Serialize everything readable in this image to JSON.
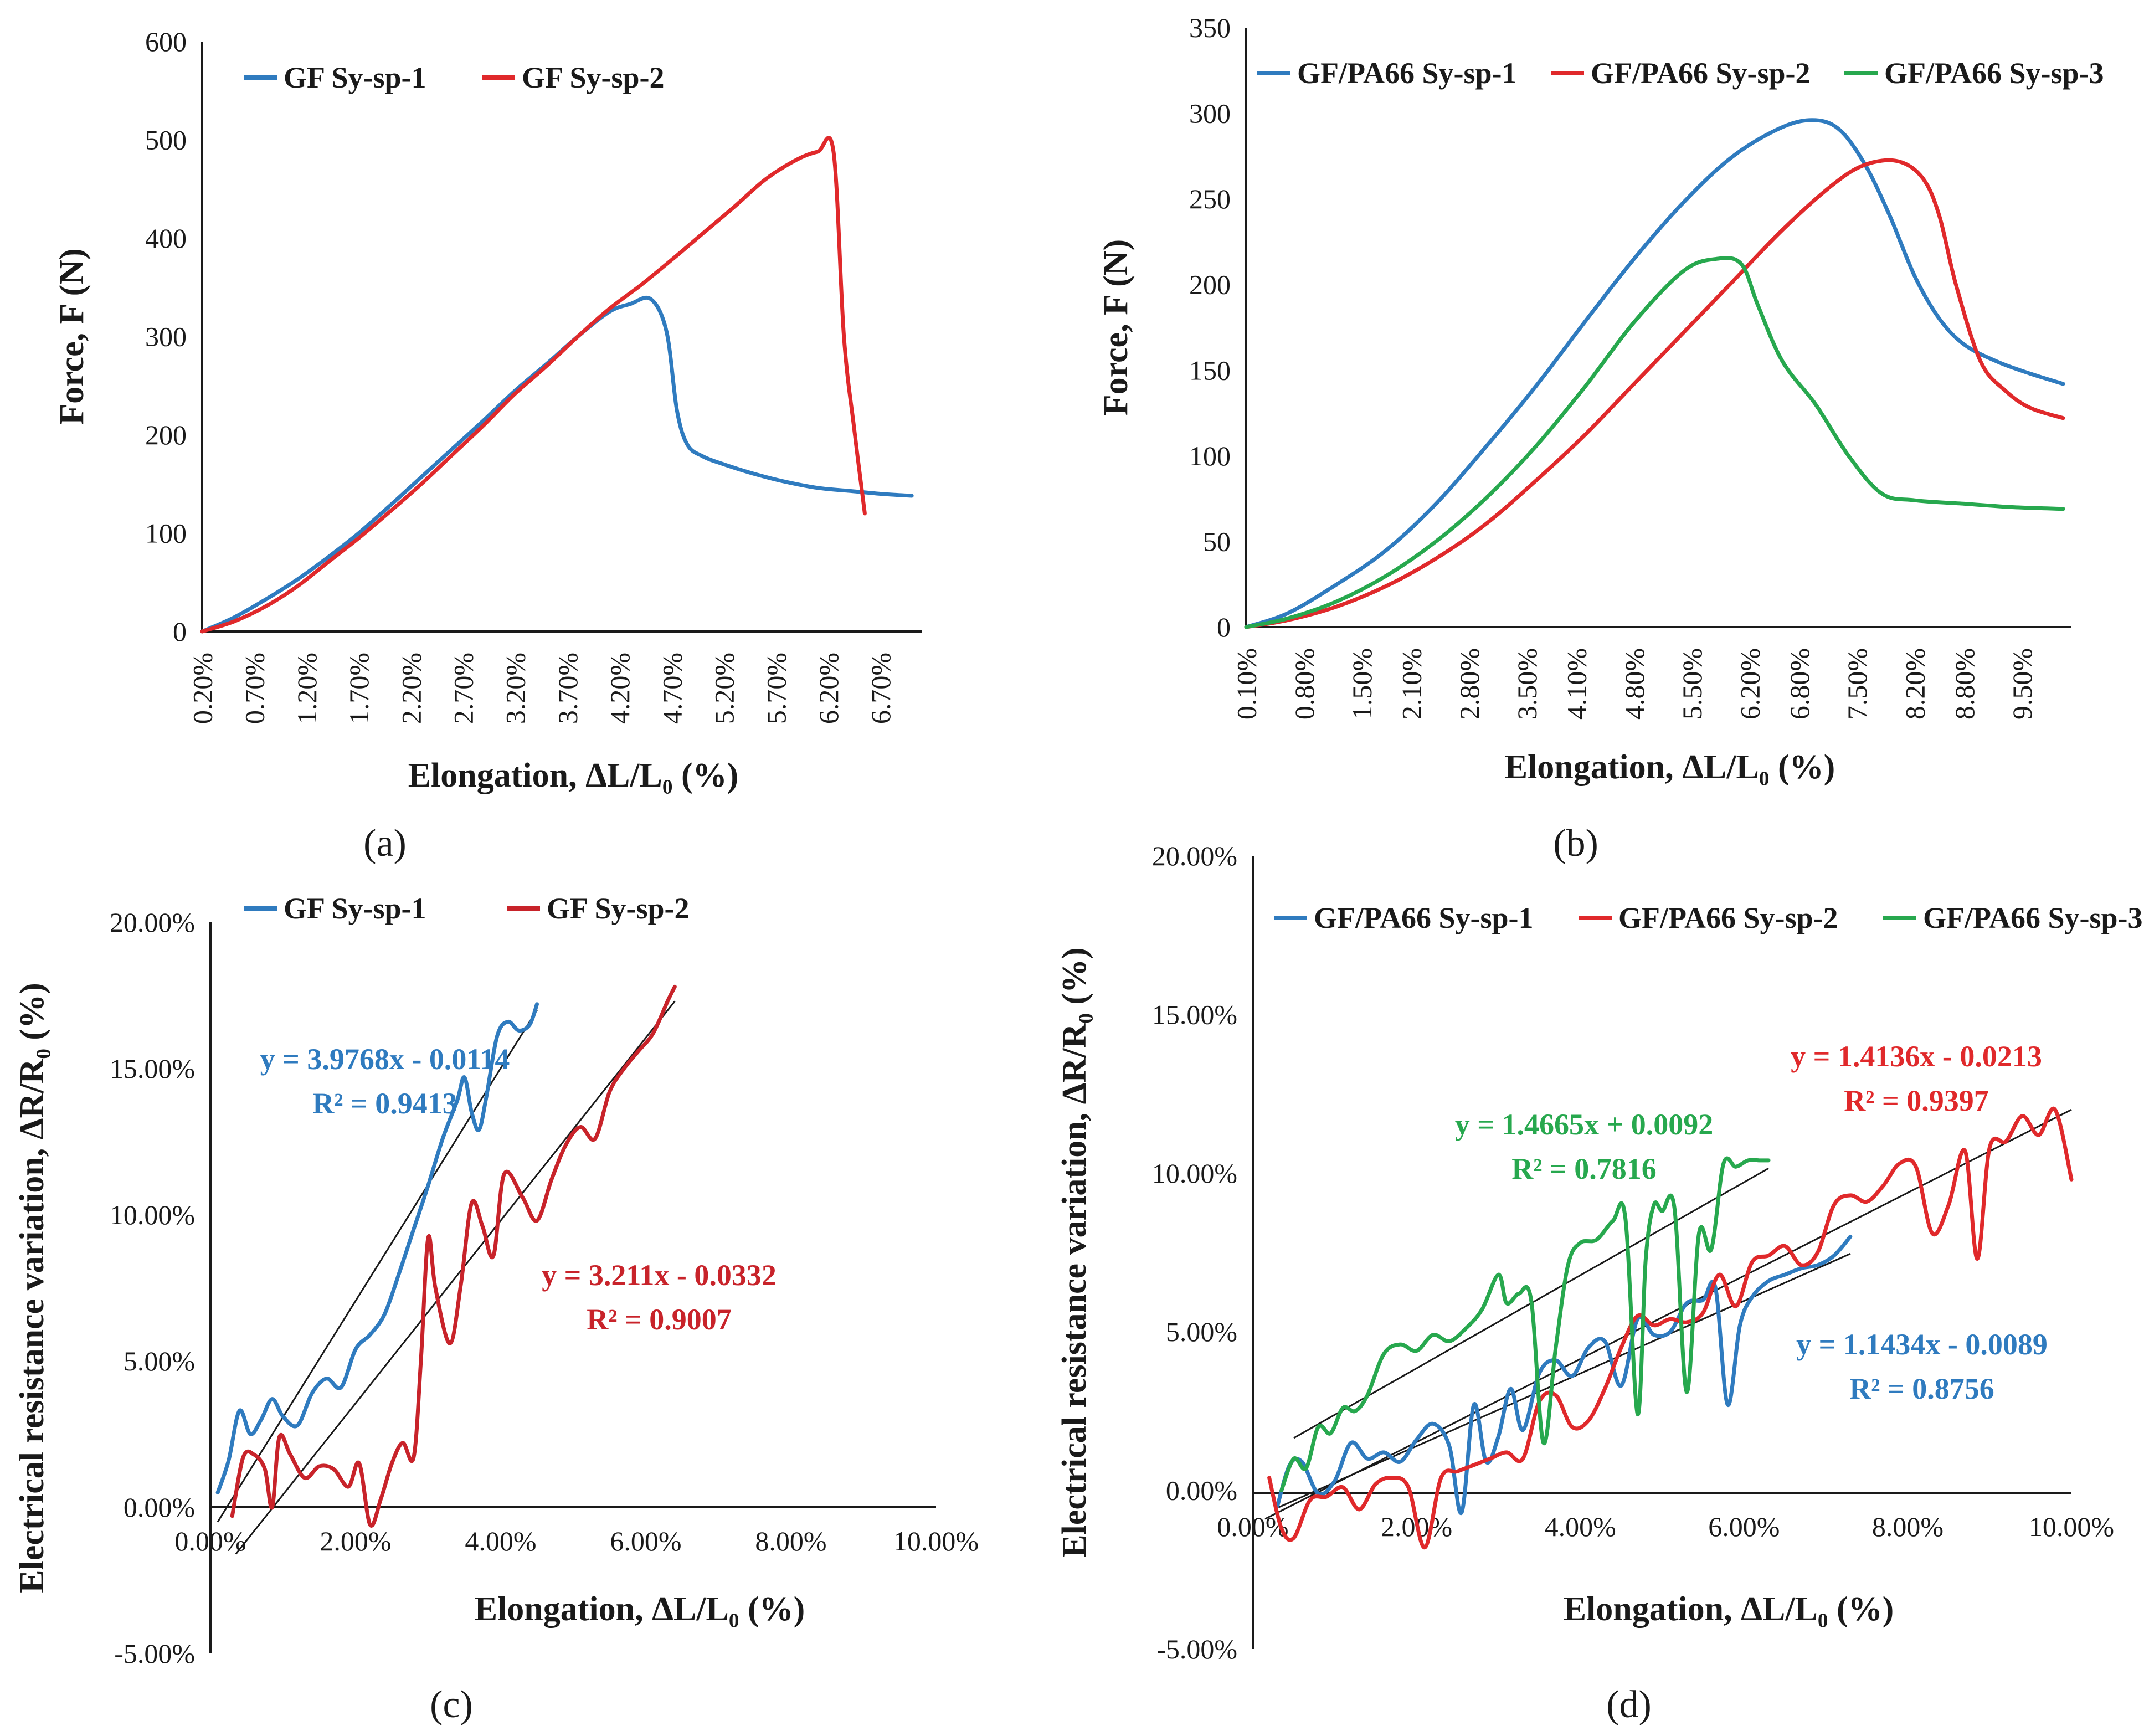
{
  "chart_data": [
    {
      "id": "a",
      "type": "line",
      "panel_label": "(a)",
      "xlabel_text": "Elongation, ΔL/L₀  (%)",
      "ylabel_text": "Force, F (N)",
      "ylim": [
        0,
        600
      ],
      "yticks": [
        "0",
        "100",
        "200",
        "300",
        "400",
        "500",
        "600"
      ],
      "xlim": [
        0.2,
        7.1
      ],
      "xticks": [
        "0.20%",
        "0.70%",
        "1.20%",
        "1.70%",
        "2.20%",
        "2.70%",
        "3.20%",
        "3.70%",
        "4.20%",
        "4.70%",
        "5.20%",
        "5.70%",
        "6.20%",
        "6.70%"
      ],
      "legend": [
        "GF Sy-sp-1",
        "GF Sy-sp-2"
      ],
      "series": [
        {
          "name": "GF Sy-sp-1",
          "color": "#2f7bbf",
          "x": [
            0.2,
            0.5,
            0.8,
            1.1,
            1.4,
            1.7,
            2.0,
            2.3,
            2.6,
            2.9,
            3.2,
            3.5,
            3.8,
            4.1,
            4.3,
            4.5,
            4.65,
            4.75,
            4.85,
            5.0,
            5.2,
            5.5,
            5.8,
            6.1,
            6.4,
            6.7,
            7.0
          ],
          "y": [
            0,
            14,
            32,
            52,
            75,
            100,
            128,
            157,
            186,
            215,
            245,
            272,
            300,
            325,
            333,
            338,
            305,
            225,
            190,
            178,
            170,
            160,
            152,
            146,
            143,
            140,
            138
          ]
        },
        {
          "name": "GF Sy-sp-2",
          "color": "#e0292b",
          "x": [
            0.2,
            0.5,
            0.8,
            1.1,
            1.4,
            1.7,
            2.0,
            2.3,
            2.6,
            2.9,
            3.2,
            3.5,
            3.8,
            4.1,
            4.4,
            4.7,
            5.0,
            5.3,
            5.6,
            5.9,
            6.1,
            6.25,
            6.35,
            6.45,
            6.55
          ],
          "y": [
            0,
            10,
            25,
            45,
            70,
            95,
            122,
            150,
            180,
            210,
            242,
            270,
            300,
            328,
            352,
            378,
            405,
            432,
            460,
            480,
            488,
            488,
            300,
            205,
            120
          ]
        }
      ]
    },
    {
      "id": "b",
      "type": "line",
      "panel_label": "(b)",
      "xlabel_text": "Elongation, ΔL/L₀ (%)",
      "ylabel_text": "Force, F (N)",
      "ylim": [
        0,
        350
      ],
      "yticks": [
        "0",
        "50",
        "100",
        "150",
        "200",
        "250",
        "300",
        "350"
      ],
      "xlim": [
        0.1,
        10.1
      ],
      "xticks": [
        "0.10%",
        "0.80%",
        "1.50%",
        "2.10%",
        "2.80%",
        "3.50%",
        "4.10%",
        "4.80%",
        "5.50%",
        "6.20%",
        "6.80%",
        "7.50%",
        "8.20%",
        "8.80%",
        "9.50%"
      ],
      "legend": [
        "GF/PA66 Sy-sp-1",
        "GF/PA66 Sy-sp-2",
        "GF/PA66 Sy-sp-3"
      ],
      "series": [
        {
          "name": "GF/PA66 Sy-sp-1",
          "color": "#2f7bbf",
          "x": [
            0.1,
            0.6,
            1.2,
            1.8,
            2.4,
            3.0,
            3.6,
            4.2,
            4.8,
            5.4,
            6.0,
            6.6,
            7.0,
            7.3,
            7.6,
            7.9,
            8.2,
            8.5,
            8.8,
            9.2,
            9.6,
            10.0
          ],
          "y": [
            0,
            8,
            25,
            45,
            72,
            105,
            140,
            178,
            215,
            248,
            275,
            292,
            296,
            290,
            270,
            240,
            205,
            180,
            165,
            155,
            148,
            142
          ]
        },
        {
          "name": "GF/PA66 Sy-sp-2",
          "color": "#e0292b",
          "x": [
            0.1,
            0.6,
            1.2,
            1.8,
            2.4,
            3.0,
            3.6,
            4.2,
            4.8,
            5.4,
            6.0,
            6.6,
            7.2,
            7.6,
            8.0,
            8.3,
            8.5,
            8.7,
            9.0,
            9.3,
            9.6,
            10.0
          ],
          "y": [
            0,
            4,
            12,
            24,
            40,
            60,
            85,
            112,
            142,
            172,
            202,
            232,
            258,
            270,
            272,
            262,
            240,
            200,
            155,
            138,
            128,
            122
          ]
        },
        {
          "name": "GF/PA66 Sy-sp-3",
          "color": "#27a84e",
          "x": [
            0.1,
            0.6,
            1.2,
            1.8,
            2.4,
            3.0,
            3.6,
            4.2,
            4.8,
            5.4,
            5.8,
            6.1,
            6.3,
            6.6,
            7.0,
            7.4,
            7.8,
            8.2,
            8.8,
            9.4,
            10.0
          ],
          "y": [
            0,
            5,
            15,
            30,
            50,
            75,
            105,
            140,
            178,
            208,
            215,
            212,
            188,
            155,
            130,
            100,
            78,
            74,
            72,
            70,
            69
          ]
        }
      ]
    },
    {
      "id": "c",
      "type": "line",
      "panel_label": "(c)",
      "xlabel_text": "Elongation, ΔL/L₀ (%)",
      "ylabel_text": "Electrical resistance variation, ΔR/R₀ (%)",
      "ylim": [
        -5,
        20
      ],
      "yticks": [
        "-5.00%",
        "0.00%",
        "5.00%",
        "10.00%",
        "15.00%",
        "20.00%"
      ],
      "xlim": [
        0,
        10
      ],
      "xticks": [
        "0.00%",
        "2.00%",
        "4.00%",
        "6.00%",
        "8.00%",
        "10.00%"
      ],
      "legend": [
        "GF Sy-sp-1",
        "GF Sy-sp-2"
      ],
      "series": [
        {
          "name": "GF Sy-sp-1",
          "color": "#2f7bbf",
          "x": [
            0.1,
            0.25,
            0.4,
            0.55,
            0.7,
            0.85,
            1.0,
            1.2,
            1.4,
            1.6,
            1.8,
            2.0,
            2.2,
            2.4,
            2.6,
            2.8,
            3.0,
            3.2,
            3.4,
            3.5,
            3.6,
            3.7,
            3.8,
            3.95,
            4.1,
            4.25,
            4.4,
            4.5
          ],
          "y": [
            0.5,
            1.6,
            3.3,
            2.5,
            3.0,
            3.7,
            3.1,
            2.8,
            3.9,
            4.4,
            4.1,
            5.4,
            5.9,
            6.6,
            8.0,
            9.5,
            11.0,
            12.6,
            13.9,
            14.7,
            13.5,
            12.9,
            14.0,
            16.1,
            16.6,
            16.3,
            16.5,
            17.2
          ]
        },
        {
          "name": "GF Sy-sp-2",
          "color": "#c8232a",
          "x": [
            0.3,
            0.45,
            0.6,
            0.75,
            0.85,
            0.95,
            1.1,
            1.3,
            1.5,
            1.7,
            1.9,
            2.05,
            2.2,
            2.35,
            2.5,
            2.65,
            2.8,
            2.9,
            3.0,
            3.1,
            3.3,
            3.45,
            3.6,
            3.75,
            3.9,
            4.05,
            4.3,
            4.5,
            4.7,
            4.9,
            5.1,
            5.3,
            5.5,
            5.7,
            5.9,
            6.1,
            6.3,
            6.4
          ],
          "y": [
            -0.3,
            1.7,
            1.8,
            1.3,
            0.0,
            2.4,
            1.8,
            1.0,
            1.4,
            1.3,
            0.7,
            1.5,
            -0.6,
            0.3,
            1.5,
            2.2,
            1.7,
            5.0,
            9.2,
            7.5,
            5.6,
            7.6,
            10.4,
            9.6,
            8.6,
            11.4,
            10.6,
            9.8,
            11.2,
            12.4,
            13.0,
            12.6,
            14.2,
            15.0,
            15.6,
            16.2,
            17.3,
            17.8
          ]
        }
      ],
      "trendlines": [
        {
          "color": "#1a1a1a",
          "x": [
            0.1,
            4.5
          ],
          "y": [
            -0.5,
            17.0
          ]
        },
        {
          "color": "#1a1a1a",
          "x": [
            0.35,
            6.4
          ],
          "y": [
            -1.6,
            17.3
          ]
        }
      ],
      "annotations": [
        {
          "color": "#2f7bbf",
          "line1": "y = 3.9768x - 0.0114",
          "line2": "R² = 0.9413"
        },
        {
          "color": "#c8232a",
          "line1": "y = 3.211x - 0.0332",
          "line2": "R² = 0.9007"
        }
      ]
    },
    {
      "id": "d",
      "type": "line",
      "panel_label": "(d)",
      "xlabel_text": "Elongation, ΔL/L₀ (%)",
      "ylabel_text": "Electrical resistance variation, ΔR/R₀ (%)",
      "ylim": [
        -5,
        20
      ],
      "yticks": [
        "-5.00%",
        "0.00%",
        "5.00%",
        "10.00%",
        "15.00%",
        "20.00%"
      ],
      "xlim": [
        0,
        10
      ],
      "xticks": [
        "0.00%",
        "2.00%",
        "4.00%",
        "6.00%",
        "8.00%",
        "10.00%"
      ],
      "legend": [
        "GF/PA66 Sy-sp-1",
        "GF/PA66 Sy-sp-2",
        "GF/PA66 Sy-sp-3"
      ],
      "series": [
        {
          "name": "GF/PA66 Sy-sp-1",
          "color": "#2f7bbf",
          "x": [
            0.3,
            0.45,
            0.6,
            0.8,
            1.0,
            1.2,
            1.4,
            1.6,
            1.8,
            2.0,
            2.2,
            2.4,
            2.55,
            2.7,
            2.85,
            3.0,
            3.15,
            3.3,
            3.5,
            3.7,
            3.9,
            4.1,
            4.3,
            4.5,
            4.7,
            4.9,
            5.1,
            5.3,
            5.5,
            5.65,
            5.8,
            5.95,
            6.1,
            6.3,
            6.5,
            6.7,
            6.9,
            7.1,
            7.3
          ],
          "y": [
            -0.5,
            0.8,
            0.9,
            -0.1,
            0.3,
            1.5,
            1.0,
            1.2,
            0.9,
            1.6,
            2.1,
            1.4,
            -0.7,
            2.7,
            0.9,
            1.7,
            3.2,
            1.9,
            3.7,
            4.1,
            3.6,
            4.5,
            4.7,
            3.3,
            5.4,
            4.9,
            5.0,
            5.9,
            6.0,
            6.4,
            2.7,
            5.2,
            6.1,
            6.6,
            6.8,
            7.0,
            7.1,
            7.4,
            8.0
          ]
        },
        {
          "name": "GF/PA66 Sy-sp-2",
          "color": "#e0292b",
          "x": [
            0.2,
            0.35,
            0.5,
            0.7,
            0.9,
            1.1,
            1.3,
            1.5,
            1.7,
            1.9,
            2.1,
            2.3,
            2.5,
            2.7,
            2.9,
            3.1,
            3.3,
            3.5,
            3.7,
            3.9,
            4.1,
            4.3,
            4.5,
            4.7,
            4.9,
            5.1,
            5.3,
            5.5,
            5.7,
            5.9,
            6.1,
            6.3,
            6.5,
            6.7,
            6.9,
            7.1,
            7.3,
            7.5,
            7.7,
            7.9,
            8.1,
            8.3,
            8.5,
            8.7,
            8.85,
            9.0,
            9.2,
            9.4,
            9.6,
            9.8,
            10.0
          ],
          "y": [
            0.4,
            -1.2,
            -1.5,
            -0.3,
            -0.2,
            0.1,
            -0.6,
            0.2,
            0.4,
            0.1,
            -1.8,
            0.4,
            0.6,
            0.8,
            1.0,
            1.2,
            1.0,
            2.8,
            3.0,
            2.0,
            2.2,
            3.2,
            4.5,
            5.5,
            5.2,
            5.4,
            5.3,
            5.6,
            6.8,
            5.8,
            7.2,
            7.4,
            7.7,
            7.1,
            7.5,
            9.0,
            9.3,
            9.1,
            9.6,
            10.3,
            10.2,
            8.1,
            9.0,
            10.7,
            7.3,
            10.8,
            11.0,
            11.8,
            11.2,
            12.0,
            9.8
          ]
        },
        {
          "name": "GF/PA66 Sy-sp-3",
          "color": "#27a84e",
          "x": [
            0.35,
            0.5,
            0.65,
            0.8,
            0.95,
            1.1,
            1.25,
            1.4,
            1.6,
            1.8,
            2.0,
            2.2,
            2.4,
            2.6,
            2.8,
            3.0,
            3.1,
            3.25,
            3.4,
            3.55,
            3.7,
            3.85,
            4.0,
            4.2,
            4.4,
            4.55,
            4.7,
            4.8,
            4.9,
            5.0,
            5.15,
            5.3,
            5.45,
            5.6,
            5.75,
            5.9,
            6.05,
            6.2,
            6.3
          ],
          "y": [
            0.0,
            1.0,
            0.7,
            2.0,
            1.8,
            2.6,
            2.5,
            3.0,
            4.3,
            4.6,
            4.4,
            4.9,
            4.7,
            5.1,
            5.7,
            6.8,
            5.9,
            6.2,
            6.0,
            1.5,
            4.5,
            7.1,
            7.8,
            7.9,
            8.5,
            8.6,
            2.4,
            7.3,
            9.0,
            8.8,
            8.9,
            3.1,
            8.1,
            7.6,
            10.3,
            10.2,
            10.4,
            10.4,
            10.4
          ]
        }
      ],
      "trendlines": [
        {
          "color": "#1a1a1a",
          "x": [
            0.5,
            6.3
          ],
          "y": [
            1.65,
            10.15
          ]
        },
        {
          "color": "#1a1a1a",
          "x": [
            0.15,
            10.0
          ],
          "y": [
            -0.9,
            12.0
          ]
        },
        {
          "color": "#1a1a1a",
          "x": [
            0.3,
            7.3
          ],
          "y": [
            -0.55,
            7.46
          ]
        }
      ],
      "annotations": [
        {
          "color": "#27a84e",
          "line1": "y = 1.4665x + 0.0092",
          "line2": "R² = 0.7816"
        },
        {
          "color": "#e0292b",
          "line1": "y = 1.4136x - 0.0213",
          "line2": "R² = 0.9397"
        },
        {
          "color": "#2f7bbf",
          "line1": "y = 1.1434x - 0.0089",
          "line2": "R² = 0.8756"
        }
      ]
    }
  ]
}
